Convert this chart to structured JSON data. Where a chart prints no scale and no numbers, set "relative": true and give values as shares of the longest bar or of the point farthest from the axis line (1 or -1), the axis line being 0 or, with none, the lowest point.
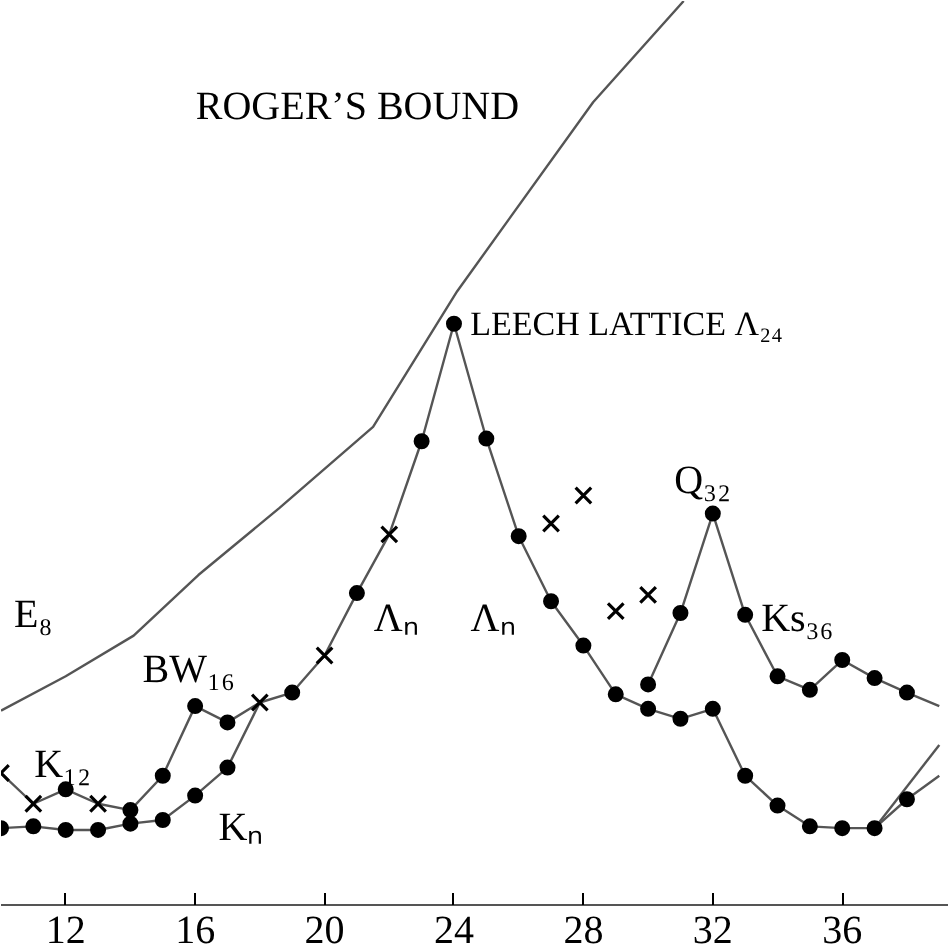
{
  "chart_data": {
    "type": "line",
    "relative": true,
    "xlim": [
      10,
      39.3
    ],
    "xticks": [
      12,
      16,
      20,
      24,
      28,
      32,
      36
    ],
    "line_style": "solid",
    "series": [
      {
        "color": "#555555",
        "marker": "none",
        "x": [
          10,
          12,
          14.1,
          16.1,
          18.6,
          21.5,
          24.1,
          28.3,
          31.1
        ],
        "values": [
          0.215,
          0.253,
          0.298,
          0.365,
          0.439,
          0.529,
          0.679,
          0.888,
          1
        ]
      },
      {
        "color": "#555555",
        "marker": "none",
        "x": [
          10,
          11,
          12,
          13,
          14,
          15,
          16,
          17,
          18,
          19,
          20,
          21,
          22,
          23,
          24,
          25,
          26,
          27,
          28,
          29,
          30,
          31,
          32,
          33,
          34,
          35,
          36,
          37
        ],
        "values": [
          0.146,
          0.112,
          0.128,
          0.112,
          0.105,
          0.143,
          0.22,
          0.202,
          0.224,
          0.235,
          0.276,
          0.345,
          0.41,
          0.513,
          0.643,
          0.516,
          0.408,
          0.336,
          0.287,
          0.233,
          0.217,
          0.206,
          0.217,
          0.143,
          0.11,
          0.087,
          0.085,
          0.085
        ]
      },
      {
        "color": "#555555",
        "marker": "none",
        "x": [
          10,
          11,
          12,
          13,
          14,
          15,
          16,
          17,
          18
        ],
        "values": [
          0.085,
          0.087,
          0.083,
          0.083,
          0.09,
          0.094,
          0.121,
          0.152,
          0.224
        ]
      },
      {
        "color": "#555555",
        "marker": "none",
        "x": [
          30,
          31,
          32,
          33,
          34,
          35,
          36,
          37,
          38,
          39
        ],
        "values": [
          0.244,
          0.323,
          0.433,
          0.321,
          0.253,
          0.238,
          0.271,
          0.251,
          0.235,
          0.22
        ]
      },
      {
        "color": "#555555",
        "marker": "none",
        "x": [
          37,
          38,
          39
        ],
        "values": [
          0.085,
          0.117,
          0.143
        ]
      },
      {
        "color": "#555555",
        "marker": "none",
        "x": [
          37,
          39
        ],
        "values": [
          0.085,
          0.177
        ]
      },
      {
        "type": "scatter",
        "color": "#000000",
        "marker": "circle",
        "x": [
          12,
          14,
          15,
          16,
          17,
          19,
          21,
          23,
          24,
          25,
          26,
          27,
          28,
          29,
          30,
          31,
          32,
          33,
          34,
          35,
          36,
          37,
          10,
          11,
          12,
          13,
          14,
          15,
          16,
          17,
          30,
          31,
          32,
          33,
          34,
          35,
          36,
          37,
          38,
          38
        ],
        "values": [
          0.128,
          0.105,
          0.143,
          0.22,
          0.202,
          0.235,
          0.345,
          0.513,
          0.643,
          0.516,
          0.408,
          0.336,
          0.287,
          0.233,
          0.217,
          0.206,
          0.217,
          0.143,
          0.11,
          0.087,
          0.085,
          0.085,
          0.085,
          0.087,
          0.083,
          0.083,
          0.09,
          0.094,
          0.121,
          0.152,
          0.244,
          0.323,
          0.433,
          0.321,
          0.253,
          0.238,
          0.271,
          0.251,
          0.235,
          0.117
        ]
      },
      {
        "type": "scatter",
        "color": "#000000",
        "marker": "cross",
        "x": [
          10,
          11,
          13,
          18,
          20,
          22,
          27,
          28,
          29,
          30
        ],
        "values": [
          0.146,
          0.112,
          0.112,
          0.224,
          0.276,
          0.41,
          0.422,
          0.453,
          0.325,
          0.343
        ]
      }
    ],
    "annotations": [
      "ROGER’S BOUND",
      {
        "text": "LEECH LATTICE Λ₂₄",
        "x": 24,
        "y": 0.643
      },
      "E₈",
      "K₁₂",
      "BW₁₆",
      "Λₙ",
      "Kₙ",
      "Λₙ",
      "Q₃₂",
      "Ks₃₆"
    ]
  }
}
